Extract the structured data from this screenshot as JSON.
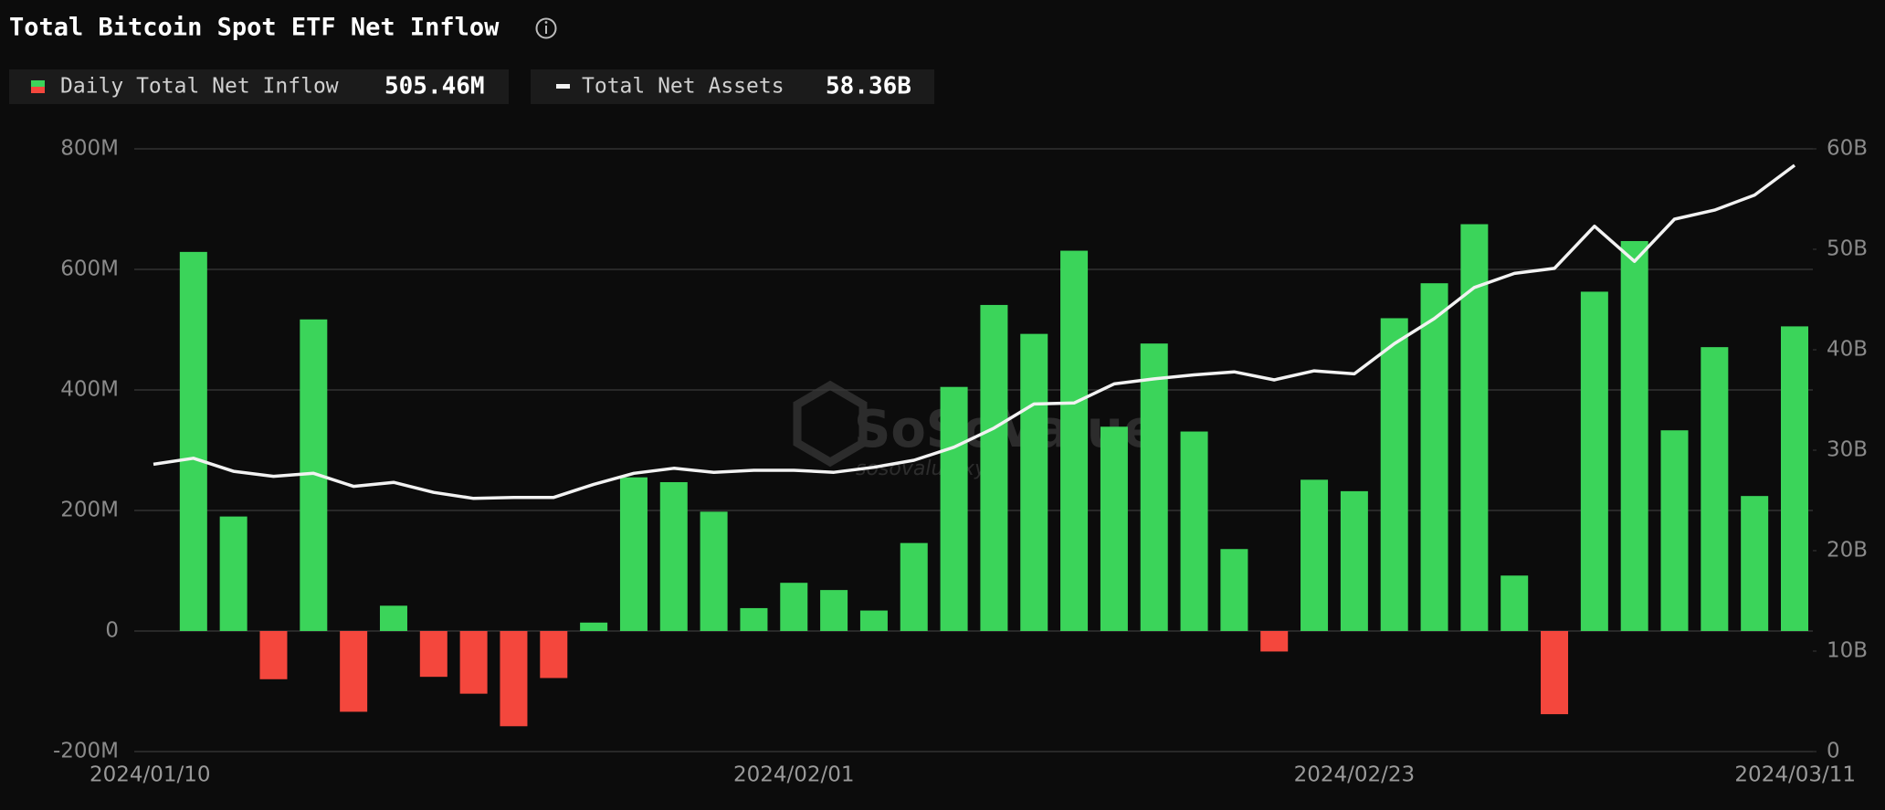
{
  "chart_data": {
    "type": "bar-line",
    "title": "Total Bitcoin Spot ETF Net Inflow",
    "watermark": "SoSoValue",
    "watermark_sub": "sosovalue.xyz",
    "categories": [
      "2024/01/10",
      null,
      null,
      null,
      null,
      null,
      null,
      null,
      null,
      null,
      null,
      null,
      null,
      null,
      null,
      null,
      "2024/02/01",
      null,
      null,
      null,
      null,
      null,
      null,
      null,
      null,
      null,
      null,
      null,
      null,
      null,
      "2024/02/23",
      null,
      null,
      null,
      null,
      null,
      null,
      null,
      null,
      null,
      null,
      "2024/03/11"
    ],
    "series": [
      {
        "name": "Daily Total Net Inflow",
        "type": "bar",
        "color": "#3bd45a",
        "negative_color": "#f4473d",
        "latest_label": "505.46M",
        "values": [
          null,
          629,
          190,
          -80,
          517,
          -134,
          42,
          -76,
          -104,
          -158,
          -78,
          14,
          255,
          247,
          198,
          38,
          80,
          68,
          34,
          146,
          405,
          541,
          493,
          631,
          339,
          477,
          331,
          136,
          -34,
          251,
          232,
          519,
          577,
          675,
          92,
          -138,
          563,
          647,
          333,
          471,
          224,
          505.46
        ]
      },
      {
        "name": "Total Net Assets",
        "type": "line",
        "axis": "y2",
        "color": "#f2f2f2",
        "latest_label": "58.36B",
        "values": [
          28.6,
          29.2,
          27.9,
          27.4,
          27.7,
          26.4,
          26.8,
          25.8,
          25.2,
          25.3,
          25.3,
          26.6,
          27.7,
          28.2,
          27.8,
          28.0,
          28.0,
          27.8,
          28.3,
          29.0,
          30.3,
          32.2,
          34.6,
          34.7,
          36.6,
          37.1,
          37.5,
          37.8,
          37.0,
          37.9,
          37.6,
          40.6,
          43.1,
          46.2,
          47.6,
          48.1,
          52.3,
          48.8,
          53.0,
          53.9,
          55.4,
          58.36
        ]
      }
    ],
    "ylim": [
      -200,
      800
    ],
    "yticks": [
      {
        "value": -200,
        "label": "-200M"
      },
      0,
      {
        "value": 200,
        "label": "200M"
      },
      {
        "value": 400,
        "label": "400M"
      },
      {
        "value": 600,
        "label": "600M"
      },
      {
        "value": 800,
        "label": "800M"
      }
    ],
    "y2lim": [
      0,
      60
    ],
    "y2ticks": [
      0,
      {
        "value": 10,
        "label": "10B"
      },
      {
        "value": 20,
        "label": "20B"
      },
      {
        "value": 30,
        "label": "30B"
      },
      {
        "value": 40,
        "label": "40B"
      },
      {
        "value": 50,
        "label": "50B"
      },
      {
        "value": 60,
        "label": "60B"
      }
    ],
    "grid": true
  }
}
